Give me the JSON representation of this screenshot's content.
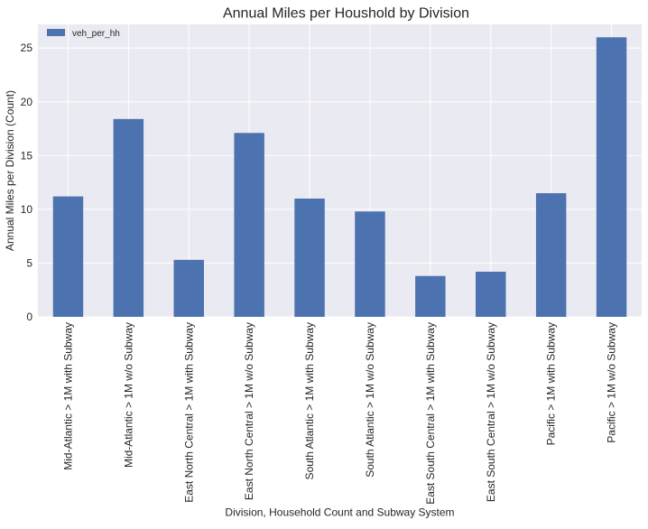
{
  "chart_data": {
    "type": "bar",
    "title": "Annual Miles per Houshold by Division",
    "xlabel": "Division, Household Count and Subway System",
    "ylabel": "Annual Miles per Division (Count)",
    "categories": [
      "Mid-Atlantic > 1M with Subway",
      "Mid-Atlantic > 1M w/o Subway",
      "East North Central > 1M with Subway",
      "East North Central > 1M w/o Subway",
      "South Atlantic > 1M with Subway",
      "South Atlantic > 1M w/o Subway",
      "East South Central > 1M with Subway",
      "East South Central > 1M w/o Subway",
      "Pacific > 1M with Subway",
      "Pacific > 1M w/o Subway"
    ],
    "series": [
      {
        "name": "veh_per_hh",
        "values": [
          11.2,
          18.4,
          5.3,
          17.1,
          11.0,
          9.8,
          3.8,
          4.2,
          11.5,
          26.0
        ],
        "color": "#4c72b0"
      }
    ],
    "ylim": [
      0,
      27.2
    ],
    "yticks": [
      0,
      5,
      10,
      15,
      20,
      25
    ],
    "ytick_labels": [
      "0",
      "5",
      "10",
      "15",
      "20",
      "25"
    ],
    "grid": true,
    "background": "#eaeaf2",
    "grid_color": "#ffffff",
    "legend_position": "top-left"
  }
}
